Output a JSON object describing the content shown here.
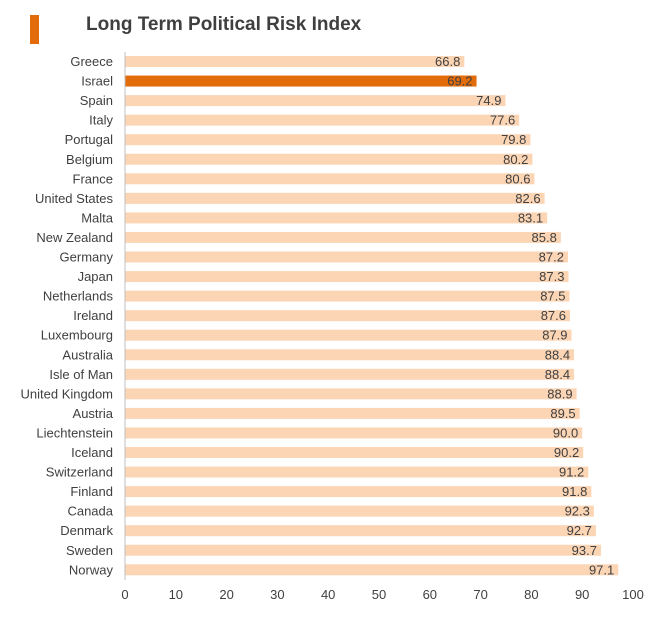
{
  "header": {
    "title": "Long Term Political Risk Index",
    "accent_color": "#e36c0a"
  },
  "chart_data": {
    "type": "bar",
    "orientation": "horizontal",
    "title": "Long Term Political Risk Index",
    "xlabel": "",
    "ylabel": "",
    "xlim": [
      0,
      100
    ],
    "xticks": [
      0,
      10,
      20,
      30,
      40,
      50,
      60,
      70,
      80,
      90,
      100
    ],
    "grid": false,
    "legend": "none",
    "bar_color": "#fcd5b5",
    "highlight_color": "#e36c0a",
    "highlight_category": "Israel",
    "categories": [
      "Greece",
      "Israel",
      "Spain",
      "Italy",
      "Portugal",
      "Belgium",
      "France",
      "United States",
      "Malta",
      "New Zealand",
      "Germany",
      "Japan",
      "Netherlands",
      "Ireland",
      "Luxembourg",
      "Australia",
      "Isle of Man",
      "United Kingdom",
      "Austria",
      "Liechtenstein",
      "Iceland",
      "Switzerland",
      "Finland",
      "Canada",
      "Denmark",
      "Sweden",
      "Norway"
    ],
    "values": [
      66.8,
      69.2,
      74.9,
      77.6,
      79.8,
      80.2,
      80.6,
      82.6,
      83.1,
      85.8,
      87.2,
      87.3,
      87.5,
      87.6,
      87.9,
      88.4,
      88.4,
      88.9,
      89.5,
      90.0,
      90.2,
      91.2,
      91.8,
      92.3,
      92.7,
      93.7,
      97.1
    ],
    "value_labels": [
      "66.8",
      "69.2",
      "74.9",
      "77.6",
      "79.8",
      "80.2",
      "80.6",
      "82.6",
      "83.1",
      "85.8",
      "87.2",
      "87.3",
      "87.5",
      "87.6",
      "87.9",
      "88.4",
      "88.4",
      "88.9",
      "89.5",
      "90.0",
      "90.2",
      "91.2",
      "91.8",
      "92.3",
      "92.7",
      "93.7",
      "97.1"
    ]
  }
}
